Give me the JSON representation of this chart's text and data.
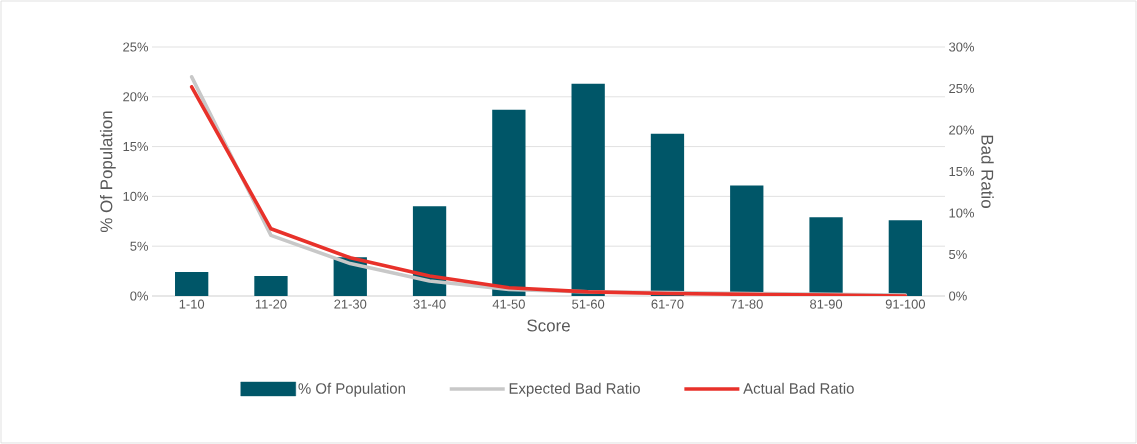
{
  "chart_data": {
    "type": "bar",
    "xlabel": "Score",
    "ylabel": "% Of Population",
    "y2label": "Bad Ratio",
    "categories": [
      "1-10",
      "11-20",
      "21-30",
      "31-40",
      "41-50",
      "51-60",
      "61-70",
      "71-80",
      "81-90",
      "91-100"
    ],
    "series": [
      {
        "name": "% Of Population",
        "color": "#005668",
        "values": [
          2.4,
          2.0,
          3.9,
          9.0,
          18.7,
          21.3,
          16.3,
          11.1,
          7.9,
          7.6
        ]
      },
      {
        "name": "Expected Bad Ratio",
        "type": "line",
        "axis": "y2",
        "color": "#c8c8c8",
        "values": [
          26.4,
          7.3,
          3.9,
          1.8,
          0.8,
          0.5,
          0.4,
          0.3,
          0.2,
          0.1
        ]
      },
      {
        "name": "Actual Bad Ratio",
        "type": "line",
        "axis": "y2",
        "color": "#e8312a",
        "values": [
          25.2,
          8.1,
          4.6,
          2.4,
          1.0,
          0.5,
          0.3,
          0.2,
          0.1,
          0.0
        ]
      }
    ],
    "ylim": [
      0,
      25
    ],
    "yticks": [
      {
        "value": 0,
        "label": "0%"
      },
      {
        "value": 5,
        "label": "5%"
      },
      {
        "value": 10,
        "label": "10%"
      },
      {
        "value": 15,
        "label": "15%"
      },
      {
        "value": 20,
        "label": "20%"
      },
      {
        "value": 25,
        "label": "25%"
      }
    ],
    "y2lim": [
      0,
      30
    ],
    "y2ticks": [
      {
        "value": 0,
        "label": "0%"
      },
      {
        "value": 5,
        "label": "5%"
      },
      {
        "value": 10,
        "label": "10%"
      },
      {
        "value": 15,
        "label": "15%"
      },
      {
        "value": 20,
        "label": "20%"
      },
      {
        "value": 25,
        "label": "25%"
      },
      {
        "value": 30,
        "label": "30%"
      }
    ],
    "grid": "y",
    "legend": "bottom"
  }
}
